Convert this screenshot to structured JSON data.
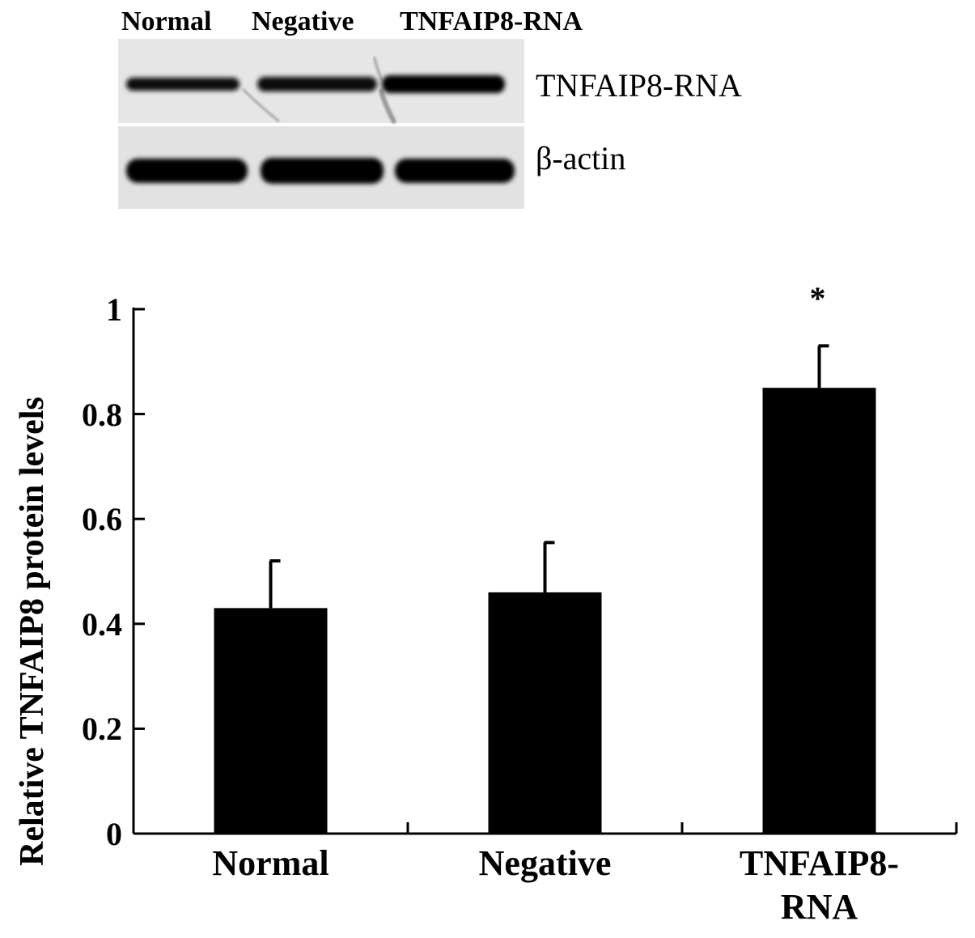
{
  "blot": {
    "lanes": [
      "Normal",
      "Negative",
      "TNFAIP8-RNA"
    ],
    "bands": [
      "TNFAIP8-RNA",
      "β-actin"
    ]
  },
  "chart_data": {
    "type": "bar",
    "categories": [
      "Normal",
      "Negative",
      "TNFAIP8-RNA"
    ],
    "category_labels": [
      [
        "Normal"
      ],
      [
        "Negative"
      ],
      [
        "TNFAIP8-",
        "RNA"
      ]
    ],
    "values": [
      0.43,
      0.46,
      0.85
    ],
    "errors": [
      0.09,
      0.095,
      0.08
    ],
    "annotations": [
      {
        "category": "TNFAIP8-RNA",
        "text": "*"
      }
    ],
    "ylabel": "Relative  TNFAIP8 protein levels",
    "xlabel": "",
    "ylim": [
      0,
      1
    ],
    "yticks": [
      0,
      0.2,
      0.4,
      0.6,
      0.8,
      1
    ],
    "ytick_labels": [
      "0",
      "0.2",
      "0.4",
      "0.6",
      "0.8",
      "1"
    ],
    "bar_color": "#000000",
    "grid": false
  }
}
